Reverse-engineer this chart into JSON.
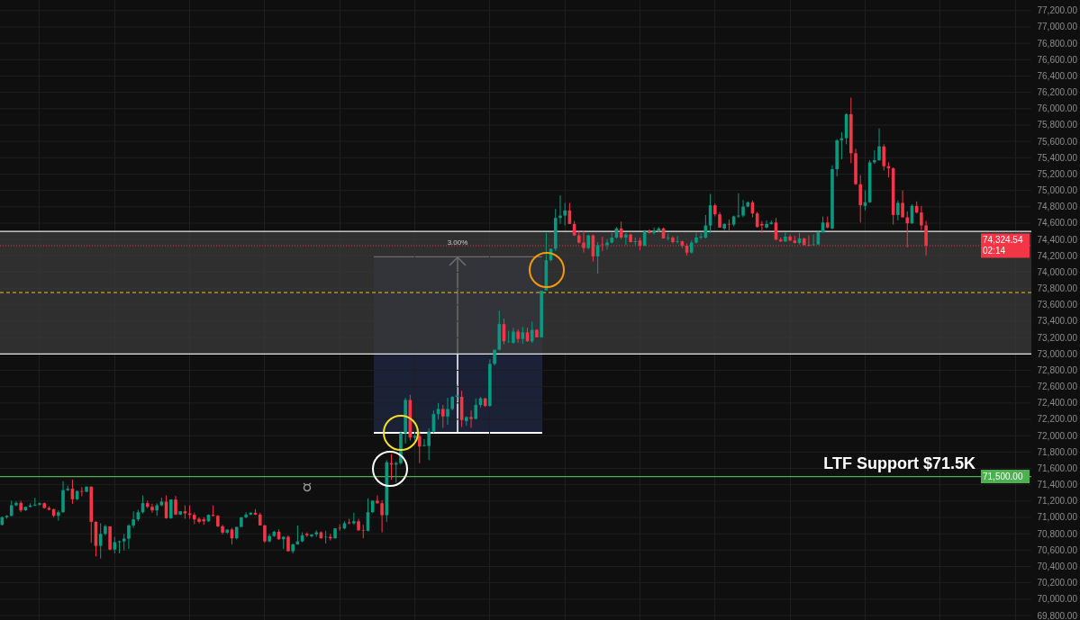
{
  "chart_data": {
    "type": "candlestick",
    "categories": [
      null,
      null,
      null,
      null,
      null,
      null,
      null,
      null,
      null,
      null,
      null,
      null,
      null,
      null,
      null,
      null,
      null,
      null,
      null,
      null,
      null,
      null,
      null,
      null,
      null,
      null,
      null,
      null,
      null,
      null,
      null,
      null,
      null,
      null,
      null,
      null,
      null,
      null,
      null,
      null,
      null,
      null,
      null,
      null,
      null,
      null,
      null,
      null,
      null,
      null,
      null,
      null,
      null,
      null,
      null,
      null,
      null,
      null,
      null,
      null,
      null,
      null,
      null,
      null,
      null,
      null,
      null,
      null,
      null,
      null,
      null,
      null,
      null,
      null,
      null,
      null,
      null,
      null,
      null,
      null,
      null,
      null,
      null,
      null,
      null,
      null,
      null,
      null,
      null,
      null,
      null,
      null,
      null,
      null,
      null,
      null,
      null,
      null,
      null,
      null,
      null,
      null,
      null,
      null,
      null,
      null,
      null,
      null,
      null,
      null,
      null,
      null,
      null,
      null,
      null,
      null,
      null,
      null,
      null,
      null,
      null,
      null,
      null,
      null,
      null,
      null,
      null,
      null,
      null,
      null,
      null,
      null,
      null,
      null,
      null,
      null,
      null,
      null,
      null,
      null,
      null,
      null,
      null,
      null,
      null,
      null,
      null,
      null,
      null,
      null,
      null,
      null,
      null,
      null,
      null,
      null,
      null,
      null,
      null,
      null,
      null,
      null,
      null,
      null,
      null,
      null,
      null,
      null,
      null,
      null,
      null,
      null,
      null,
      null,
      null,
      null,
      null,
      null,
      null,
      null,
      null,
      null,
      null,
      null,
      null,
      null,
      null,
      null,
      null,
      null,
      null,
      null,
      null,
      null,
      null,
      null,
      null,
      null,
      null,
      null,
      null,
      null,
      null,
      null,
      null,
      null,
      null,
      null,
      null,
      null,
      null,
      null,
      null,
      null,
      null,
      null,
      null,
      null,
      null,
      null
    ],
    "ohlc": [
      [
        70910,
        71010,
        70902,
        71002
      ],
      [
        71002,
        71027,
        70983,
        71020
      ],
      [
        71020,
        71204,
        71012,
        71148
      ],
      [
        71148,
        71196,
        71137,
        71178
      ],
      [
        71178,
        71204,
        71064,
        71086
      ],
      [
        71086,
        71130,
        71082,
        71130
      ],
      [
        71130,
        71174,
        71123,
        71145
      ],
      [
        71145,
        71241,
        71137,
        71156
      ],
      [
        71156,
        71182,
        71145,
        71174
      ],
      [
        71174,
        71182,
        71108,
        71115
      ],
      [
        71115,
        71137,
        71086,
        71094
      ],
      [
        71100,
        71108,
        71002,
        71020
      ],
      [
        71020,
        71086,
        70961,
        71064
      ],
      [
        71064,
        71443,
        71057,
        71333
      ],
      [
        71333,
        71388,
        71322,
        71351
      ],
      [
        71351,
        71461,
        71167,
        71222
      ],
      [
        71222,
        71333,
        71211,
        71322
      ],
      [
        71322,
        71370,
        71259,
        71314
      ],
      [
        71314,
        71377,
        71307,
        71377
      ],
      [
        71377,
        71377,
        70689,
        70946
      ],
      [
        70946,
        70953,
        70523,
        70652
      ],
      [
        70652,
        70928,
        70497,
        70799
      ],
      [
        70799,
        70910,
        70781,
        70891
      ],
      [
        70891,
        70891,
        70598,
        70607
      ],
      [
        70607,
        70762,
        70560,
        70696
      ],
      [
        70696,
        70718,
        70560,
        70707
      ],
      [
        70707,
        70799,
        70598,
        70740
      ],
      [
        70740,
        70917,
        70615,
        70902
      ],
      [
        70902,
        71075,
        70873,
        70976
      ],
      [
        70976,
        71094,
        70953,
        71064
      ],
      [
        71064,
        71270,
        71049,
        71174
      ],
      [
        71174,
        71204,
        71112,
        71130
      ],
      [
        71130,
        71167,
        71057,
        71086
      ],
      [
        71086,
        71174,
        71020,
        71148
      ],
      [
        71148,
        71241,
        71137,
        71193
      ],
      [
        71193,
        71270,
        70983,
        70990
      ],
      [
        70990,
        71219,
        70983,
        71219
      ],
      [
        71219,
        71263,
        71027,
        71035
      ],
      [
        71035,
        71075,
        71027,
        71075
      ],
      [
        71075,
        71148,
        70983,
        71049
      ],
      [
        71049,
        71148,
        70983,
        71031
      ],
      [
        71031,
        71057,
        70917,
        70976
      ],
      [
        70983,
        71002,
        70928,
        70946
      ],
      [
        70976,
        71002,
        70910,
        70953
      ],
      [
        70953,
        71038,
        70946,
        71031
      ],
      [
        71031,
        71148,
        71012,
        71020
      ],
      [
        71020,
        71027,
        70880,
        70891
      ],
      [
        70891,
        70910,
        70792,
        70814
      ],
      [
        70814,
        70851,
        70799,
        70851
      ],
      [
        70851,
        70873,
        70670,
        70744
      ],
      [
        70744,
        70884,
        70733,
        70884
      ],
      [
        70884,
        71002,
        70880,
        71002
      ],
      [
        71002,
        71064,
        70990,
        71035
      ],
      [
        71035,
        71064,
        71027,
        71057
      ],
      [
        71057,
        71101,
        71027,
        71035
      ],
      [
        71035,
        71057,
        70902,
        70902
      ],
      [
        70902,
        70910,
        70689,
        70707
      ],
      [
        70707,
        70799,
        70696,
        70773
      ],
      [
        70773,
        70836,
        70762,
        70825
      ],
      [
        70825,
        70854,
        70726,
        70733
      ],
      [
        70733,
        70770,
        70615,
        70762
      ],
      [
        70762,
        70781,
        70586,
        70586
      ],
      [
        70586,
        70681,
        70560,
        70670
      ],
      [
        70670,
        70902,
        70667,
        70707
      ],
      [
        70707,
        70818,
        70696,
        70781
      ],
      [
        70799,
        70818,
        70762,
        70781
      ],
      [
        70770,
        70792,
        70755,
        70792
      ],
      [
        70792,
        70843,
        70762,
        70818
      ],
      [
        70818,
        70829,
        70740,
        70744
      ],
      [
        70755,
        70836,
        70681,
        70762
      ],
      [
        70762,
        70799,
        70718,
        70744
      ],
      [
        70744,
        70866,
        70740,
        70866
      ],
      [
        70873,
        70917,
        70836,
        70866
      ],
      [
        70866,
        70953,
        70854,
        70928
      ],
      [
        70939,
        70983,
        70917,
        70928
      ],
      [
        70928,
        71057,
        70910,
        70953
      ],
      [
        70953,
        70983,
        70836,
        70843
      ],
      [
        70843,
        70910,
        70744,
        70836
      ],
      [
        70836,
        71233,
        70829,
        71064
      ],
      [
        71064,
        71211,
        71057,
        71204
      ],
      [
        71204,
        71270,
        71167,
        71174
      ],
      [
        71174,
        71211,
        70818,
        71027
      ],
      [
        71027,
        71700,
        70946,
        71675
      ],
      [
        71664,
        71774,
        71462,
        71646
      ],
      [
        71646,
        71683,
        71425,
        71664
      ],
      [
        71664,
        72051,
        71646,
        72032
      ],
      [
        72032,
        72463,
        71904,
        72437
      ],
      [
        72437,
        72500,
        71941,
        71977
      ],
      [
        71977,
        72014,
        71941,
        71996
      ],
      [
        71996,
        72051,
        71664,
        71867
      ],
      [
        71874,
        71959,
        71867,
        71885
      ],
      [
        71874,
        72088,
        71701,
        72051
      ],
      [
        72051,
        72308,
        72032,
        72264
      ],
      [
        72264,
        72400,
        72198,
        72327
      ],
      [
        72327,
        72375,
        72095,
        72235
      ],
      [
        72235,
        72463,
        72132,
        72327
      ],
      [
        72327,
        72485,
        72308,
        72474
      ],
      [
        72474,
        72621,
        72419,
        72492
      ],
      [
        72474,
        72548,
        72106,
        72191
      ],
      [
        72180,
        72235,
        72125,
        72228
      ],
      [
        72228,
        72308,
        72095,
        72205
      ],
      [
        72205,
        72456,
        72198,
        72375
      ],
      [
        72375,
        72474,
        72345,
        72456
      ],
      [
        72456,
        72463,
        72353,
        72364
      ],
      [
        72364,
        72934,
        72353,
        72879
      ],
      [
        72879,
        73052,
        72860,
        73052
      ],
      [
        73052,
        73530,
        73044,
        73365
      ],
      [
        73365,
        73431,
        73118,
        73155
      ],
      [
        73155,
        73284,
        73136,
        73151
      ],
      [
        73136,
        73320,
        73125,
        73273
      ],
      [
        73273,
        73302,
        73136,
        73184
      ],
      [
        73184,
        73332,
        73125,
        73265
      ],
      [
        73265,
        73320,
        73147,
        73155
      ],
      [
        73155,
        73394,
        73136,
        73295
      ],
      [
        73295,
        73302,
        73203,
        73203
      ],
      [
        73203,
        73773,
        73199,
        73773
      ],
      [
        73780,
        74480,
        73773,
        74148
      ],
      [
        74148,
        74288,
        74130,
        74288
      ],
      [
        74288,
        74774,
        74259,
        74664
      ],
      [
        74664,
        74940,
        74590,
        74693
      ],
      [
        74693,
        74848,
        74572,
        74756
      ],
      [
        74756,
        74848,
        74590,
        74590
      ],
      [
        74590,
        74627,
        74443,
        74450
      ],
      [
        74450,
        74498,
        74351,
        74362
      ],
      [
        74362,
        74509,
        74240,
        74296
      ],
      [
        74296,
        74461,
        74277,
        74450
      ],
      [
        74450,
        74461,
        74130,
        74193
      ],
      [
        74193,
        74369,
        73983,
        74332
      ],
      [
        74340,
        74435,
        74259,
        74332
      ],
      [
        74332,
        74406,
        74277,
        74362
      ],
      [
        74362,
        74480,
        74351,
        74424
      ],
      [
        74424,
        74553,
        74413,
        74535
      ],
      [
        74535,
        74619,
        74406,
        74424
      ],
      [
        74424,
        74480,
        74332,
        74461
      ],
      [
        74461,
        74472,
        74362,
        74369
      ],
      [
        74369,
        74424,
        74325,
        74380
      ],
      [
        74388,
        74424,
        74266,
        74325
      ],
      [
        74325,
        74516,
        74318,
        74498
      ],
      [
        74498,
        74524,
        74472,
        74480
      ],
      [
        74480,
        74546,
        74461,
        74509
      ],
      [
        74509,
        74553,
        74487,
        74535
      ],
      [
        74535,
        74546,
        74413,
        74413
      ],
      [
        74413,
        74472,
        74388,
        74421
      ],
      [
        74421,
        74443,
        74351,
        74369
      ],
      [
        74369,
        74443,
        74351,
        74377
      ],
      [
        74377,
        74388,
        74296,
        74325
      ],
      [
        74325,
        74351,
        74204,
        74240
      ],
      [
        74240,
        74388,
        74229,
        74362
      ],
      [
        74362,
        74480,
        74351,
        74424
      ],
      [
        74424,
        74480,
        74406,
        74435
      ],
      [
        74424,
        74700,
        74413,
        74572
      ],
      [
        74572,
        74958,
        74480,
        74818
      ],
      [
        74818,
        74840,
        74682,
        74708
      ],
      [
        74708,
        74737,
        74546,
        74546
      ],
      [
        74535,
        74597,
        74516,
        74590
      ],
      [
        74590,
        74645,
        74498,
        74583
      ],
      [
        74583,
        74693,
        74561,
        74682
      ],
      [
        74682,
        74965,
        74664,
        74693
      ],
      [
        74693,
        74884,
        74671,
        74803
      ],
      [
        74803,
        74866,
        74792,
        74855
      ],
      [
        74855,
        74877,
        74671,
        74719
      ],
      [
        74719,
        74737,
        74546,
        74553
      ],
      [
        74590,
        74627,
        74480,
        74572
      ],
      [
        74546,
        74634,
        74535,
        74590
      ],
      [
        74590,
        74634,
        74583,
        74608
      ],
      [
        74608,
        74664,
        74388,
        74399
      ],
      [
        74399,
        74424,
        74369,
        74377
      ],
      [
        74377,
        74487,
        74369,
        74435
      ],
      [
        74435,
        74461,
        74377,
        74388
      ],
      [
        74388,
        74443,
        74351,
        74358
      ],
      [
        74358,
        74480,
        74340,
        74413
      ],
      [
        74413,
        74424,
        74332,
        74332
      ],
      [
        74332,
        74450,
        74314,
        74325
      ],
      [
        74332,
        74461,
        74325,
        74340
      ],
      [
        74340,
        74498,
        74332,
        74487
      ],
      [
        74487,
        74682,
        74480,
        74608
      ],
      [
        74608,
        74682,
        74535,
        74546
      ],
      [
        74535,
        75308,
        74524,
        75260
      ],
      [
        75260,
        75628,
        75171,
        75613
      ],
      [
        75613,
        75712,
        75381,
        75639
      ],
      [
        75639,
        75944,
        75565,
        75933
      ],
      [
        75933,
        76136,
        75333,
        75455
      ],
      [
        75455,
        75510,
        75068,
        75076
      ],
      [
        75076,
        75186,
        74608,
        74818
      ],
      [
        74811,
        75002,
        74756,
        74855
      ],
      [
        74855,
        75370,
        74848,
        75344
      ],
      [
        75344,
        75491,
        75326,
        75370
      ],
      [
        75370,
        75760,
        75363,
        75539
      ],
      [
        75539,
        75565,
        75245,
        75297
      ],
      [
        75297,
        75344,
        75160,
        75271
      ],
      [
        75271,
        75282,
        74583,
        74700
      ],
      [
        74700,
        74877,
        74634,
        74848
      ],
      [
        74848,
        75002,
        74671,
        74671
      ],
      [
        74671,
        74745,
        74303,
        74598
      ],
      [
        74598,
        74829,
        74590,
        74811
      ],
      [
        74811,
        74866,
        74719,
        74730
      ],
      [
        74730,
        74811,
        74516,
        74572
      ],
      [
        74572,
        74627,
        74204,
        74324.54
      ],
      null,
      null,
      null,
      null,
      null,
      null,
      null,
      null,
      null,
      null,
      null,
      null,
      null,
      null,
      null,
      null,
      null,
      null,
      null,
      null,
      null,
      null
    ],
    "colors": [
      "#089981",
      "#089981",
      "#089981",
      "#089981",
      "#f23645",
      "#089981",
      "#089981",
      "#089981",
      "#089981",
      "#f23645",
      "#f23645",
      "#f23645",
      "#089981",
      "#089981",
      "#089981",
      "#f23645",
      "#089981",
      "#f23645",
      "#089981",
      "#f23645",
      "#f23645",
      "#089981",
      "#089981",
      "#f23645",
      "#089981",
      "#089981",
      "#089981",
      "#089981",
      "#089981",
      "#089981",
      "#089981",
      "#f23645",
      "#f23645",
      "#089981",
      "#089981",
      "#f23645",
      "#089981",
      "#f23645",
      "#089981",
      "#f23645",
      "#f23645",
      "#f23645",
      "#f23645",
      "#f23645",
      "#089981",
      "#f23645",
      "#f23645",
      "#f23645",
      "#089981",
      "#f23645",
      "#089981",
      "#089981",
      "#089981",
      "#089981",
      "#f23645",
      "#f23645",
      "#f23645",
      "#089981",
      "#089981",
      "#f23645",
      "#089981",
      "#f23645",
      "#089981",
      "#089981",
      "#089981",
      "#f23645",
      "#089981",
      "#089981",
      "#f23645",
      "#089981",
      "#f23645",
      "#089981",
      "#f23645",
      "#089981",
      "#f23645",
      "#089981",
      "#f23645",
      "#f23645",
      "#089981",
      "#089981",
      "#f23645",
      "#f23645",
      "#089981",
      "#f23645",
      "#089981",
      "#089981",
      "#089981",
      "#f23645",
      "#089981",
      "#f23645",
      "#089981",
      "#089981",
      "#089981",
      "#089981",
      "#f23645",
      "#089981",
      "#089981",
      "#089981",
      "#f23645",
      "#089981",
      "#f23645",
      "#089981",
      "#089981",
      "#f23645",
      "#089981",
      "#089981",
      "#089981",
      "#f23645",
      "#089981",
      "#089981",
      "#f23645",
      "#089981",
      "#f23645",
      "#089981",
      "#f23645",
      "#089981",
      "#089981",
      "#089981",
      "#089981",
      "#089981",
      "#089981",
      "#f23645",
      "#f23645",
      "#f23645",
      "#f23645",
      "#089981",
      "#f23645",
      "#089981",
      "#f23645",
      "#089981",
      "#089981",
      "#089981",
      "#f23645",
      "#089981",
      "#f23645",
      "#089981",
      "#f23645",
      "#089981",
      "#f23645",
      "#089981",
      "#089981",
      "#f23645",
      "#089981",
      "#f23645",
      "#089981",
      "#f23645",
      "#f23645",
      "#089981",
      "#089981",
      "#089981",
      "#089981",
      "#089981",
      "#f23645",
      "#f23645",
      "#089981",
      "#f23645",
      "#089981",
      "#089981",
      "#089981",
      "#089981",
      "#f23645",
      "#f23645",
      "#f23645",
      "#089981",
      "#089981",
      "#f23645",
      "#f23645",
      "#089981",
      "#f23645",
      "#f23645",
      "#089981",
      "#f23645",
      "#f23645",
      "#089981",
      "#089981",
      "#089981",
      "#f23645",
      "#089981",
      "#089981",
      "#089981",
      "#089981",
      "#f23645",
      "#f23645",
      "#f23645",
      "#089981",
      "#089981",
      "#089981",
      "#089981",
      "#f23645",
      "#f23645",
      "#f23645",
      "#089981",
      "#f23645",
      "#f23645",
      "#089981",
      "#f23645",
      "#f23645",
      "#f23645",
      null,
      null,
      null,
      null,
      null,
      null,
      null,
      null,
      null,
      null,
      null,
      null,
      null,
      null,
      null,
      null,
      null,
      null,
      null,
      null,
      null,
      null
    ],
    "ylim": [
      69745,
      77330
    ],
    "yticks": [
      {
        "value": 69800,
        "label": "69,800.00"
      },
      {
        "value": 70000,
        "label": "70,000.00"
      },
      {
        "value": 70200,
        "label": "70,200.00"
      },
      {
        "value": 70400,
        "label": "70,400.00"
      },
      {
        "value": 70600,
        "label": "70,600.00"
      },
      {
        "value": 70800,
        "label": "70,800.00"
      },
      {
        "value": 71000,
        "label": "71,000.00"
      },
      {
        "value": 71200,
        "label": "71,200.00"
      },
      {
        "value": 71400,
        "label": "71,400.00"
      },
      {
        "value": 71600,
        "label": "71,600.00"
      },
      {
        "value": 71800,
        "label": "71,800.00"
      },
      {
        "value": 72000,
        "label": "72,000.00"
      },
      {
        "value": 72200,
        "label": "72,200.00"
      },
      {
        "value": 72400,
        "label": "72,400.00"
      },
      {
        "value": 72600,
        "label": "72,600.00"
      },
      {
        "value": 72800,
        "label": "72,800.00"
      },
      {
        "value": 73000,
        "label": "73,000.00"
      },
      {
        "value": 73200,
        "label": "73,200.00"
      },
      {
        "value": 73400,
        "label": "73,400.00"
      },
      {
        "value": 73600,
        "label": "73,600.00"
      },
      {
        "value": 73800,
        "label": "73,800.00"
      },
      {
        "value": 74000,
        "label": "74,000.00"
      },
      {
        "value": 74200,
        "label": "74,200.00"
      },
      {
        "value": 74400,
        "label": "74,400.00"
      },
      {
        "value": 74600,
        "label": "74,600.00"
      },
      {
        "value": 74800,
        "label": "74,800.00"
      },
      {
        "value": 75000,
        "label": "75,000.00"
      },
      {
        "value": 75200,
        "label": "75,200.00"
      },
      {
        "value": 75400,
        "label": "75,400.00"
      },
      {
        "value": 75600,
        "label": "75,600.00"
      },
      {
        "value": 75800,
        "label": "75,800.00"
      },
      {
        "value": 76000,
        "label": "76,000.00"
      },
      {
        "value": 76200,
        "label": "76,200.00"
      },
      {
        "value": 76400,
        "label": "76,400.00"
      },
      {
        "value": 76600,
        "label": "76,600.00"
      },
      {
        "value": 76800,
        "label": "76,800.00"
      },
      {
        "value": 77000,
        "label": "77,000.00"
      },
      {
        "value": 77200,
        "label": "77,200.00"
      }
    ],
    "bands": [
      {
        "axis": "y",
        "from": 73000,
        "to": 74500,
        "color": "#3b3b3b"
      }
    ],
    "ref_lines": [
      {
        "axis": "y",
        "value": 73000,
        "color": "#e8e8e8"
      },
      {
        "axis": "y",
        "value": 74500,
        "color": "#e8e8e8"
      },
      {
        "axis": "y",
        "value": 73750,
        "color": "#c9a227",
        "line_style": "dashed"
      },
      {
        "axis": "y",
        "value": 71500,
        "label": "71,500.00",
        "color": "#4caf50"
      },
      {
        "axis": "y",
        "value": 74324.54,
        "label": "74,324.54\n02:14",
        "color": "#f23645",
        "line_style": "dotted"
      }
    ],
    "annotations": [
      {
        "text": "LTF Support $71.5K",
        "y": 71500
      },
      {
        "text": "3.00%",
        "y": 74360
      }
    ],
    "grid": true,
    "tick_labels": "y"
  }
}
